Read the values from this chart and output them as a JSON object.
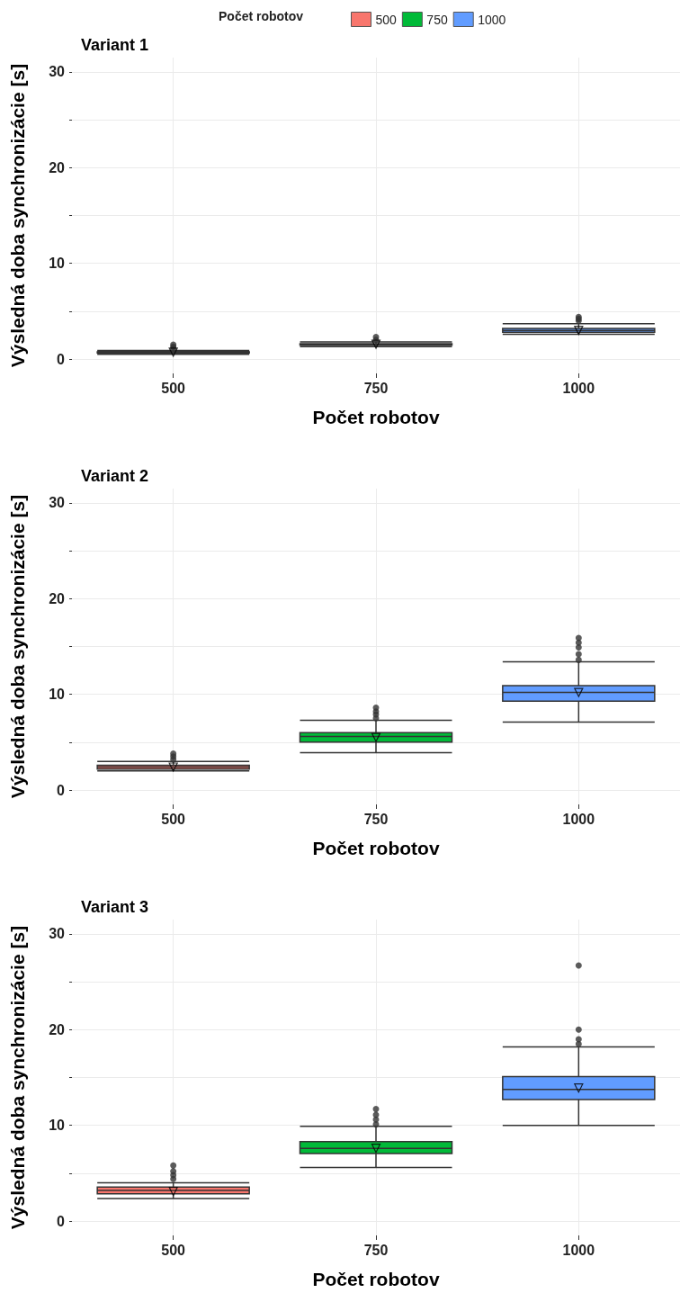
{
  "chart_data": [
    {
      "type": "box",
      "title": "Variant 1",
      "xlabel": "Počet robotov",
      "ylabel": "Výsledná doba synchronizácie [s]",
      "legend_title": "Počet robotov",
      "legend": "top",
      "categories": [
        "500",
        "750",
        "1000"
      ],
      "ylim": [
        -1.5,
        31.5
      ],
      "yticks": [
        0,
        {
          "value": 5,
          "label": null
        },
        10,
        {
          "value": 15,
          "label": null
        },
        20,
        {
          "value": 25,
          "label": null
        },
        30
      ],
      "grid": true,
      "series": [
        {
          "name": "500",
          "color": "#f8766d",
          "boxes": [
            {
              "low": 0.5,
              "q1": 0.65,
              "median": 0.7,
              "q3": 0.75,
              "high": 0.9,
              "mean": 0.72,
              "outliers": [
                1.1,
                1.3,
                1.5
              ]
            },
            null,
            null
          ]
        },
        {
          "name": "750",
          "color": "#00ba38",
          "boxes": [
            null,
            {
              "low": 1.3,
              "q1": 1.45,
              "median": 1.5,
              "q3": 1.6,
              "high": 1.8,
              "mean": 1.55,
              "outliers": [
                2.0,
                2.3
              ]
            },
            null
          ]
        },
        {
          "name": "1000",
          "color": "#619cff",
          "boxes": [
            null,
            null,
            {
              "low": 2.6,
              "q1": 2.8,
              "median": 3.0,
              "q3": 3.2,
              "high": 3.7,
              "mean": 3.0,
              "outliers": [
                4.0,
                4.2,
                4.4
              ]
            }
          ]
        }
      ]
    },
    {
      "type": "box",
      "title": "Variant 2",
      "xlabel": "Počet robotov",
      "ylabel": "Výsledná doba synchronizácie [s]",
      "categories": [
        "500",
        "750",
        "1000"
      ],
      "ylim": [
        -1.5,
        31.5
      ],
      "yticks": [
        0,
        {
          "value": 5,
          "label": null
        },
        10,
        {
          "value": 15,
          "label": null
        },
        20,
        {
          "value": 25,
          "label": null
        },
        30
      ],
      "grid": true,
      "series": [
        {
          "color": "#f8766d",
          "boxes": [
            {
              "low": 2.0,
              "q1": 2.2,
              "median": 2.4,
              "q3": 2.6,
              "high": 3.0,
              "mean": 2.4,
              "outliers": [
                3.2,
                3.5,
                3.8
              ]
            },
            null,
            null
          ]
        },
        {
          "color": "#00ba38",
          "boxes": [
            null,
            {
              "low": 3.9,
              "q1": 5.0,
              "median": 5.6,
              "q3": 6.0,
              "high": 7.3,
              "mean": 5.5,
              "outliers": [
                7.5,
                7.9,
                8.2,
                8.6
              ]
            },
            null
          ]
        },
        {
          "color": "#619cff",
          "boxes": [
            null,
            null,
            {
              "low": 7.1,
              "q1": 9.3,
              "median": 10.2,
              "q3": 10.9,
              "high": 13.4,
              "mean": 10.2,
              "outliers": [
                13.6,
                14.2,
                14.9,
                15.4,
                15.9
              ]
            }
          ]
        }
      ]
    },
    {
      "type": "box",
      "title": "Variant 3",
      "xlabel": "Počet robotov",
      "ylabel": "Výsledná doba synchronizácie [s]",
      "categories": [
        "500",
        "750",
        "1000"
      ],
      "ylim": [
        -1.5,
        31.5
      ],
      "yticks": [
        0,
        {
          "value": 5,
          "label": null
        },
        10,
        {
          "value": 15,
          "label": null
        },
        20,
        {
          "value": 25,
          "label": null
        },
        30
      ],
      "grid": true,
      "series": [
        {
          "color": "#f8766d",
          "boxes": [
            {
              "low": 2.35,
              "q1": 2.85,
              "median": 3.2,
              "q3": 3.55,
              "high": 4.0,
              "mean": 3.1,
              "outliers": [
                4.4,
                4.8,
                5.2,
                5.8
              ]
            },
            null,
            null
          ]
        },
        {
          "color": "#00ba38",
          "boxes": [
            null,
            {
              "low": 5.6,
              "q1": 7.05,
              "median": 7.6,
              "q3": 8.3,
              "high": 9.9,
              "mean": 7.6,
              "outliers": [
                10.1,
                10.6,
                11.1,
                11.7
              ]
            },
            null
          ]
        },
        {
          "color": "#619cff",
          "boxes": [
            null,
            null,
            {
              "low": 10.0,
              "q1": 12.7,
              "median": 13.75,
              "q3": 15.1,
              "high": 18.2,
              "mean": 13.9,
              "outliers": [
                18.5,
                19.0,
                20.0,
                26.7
              ]
            }
          ]
        }
      ]
    }
  ]
}
